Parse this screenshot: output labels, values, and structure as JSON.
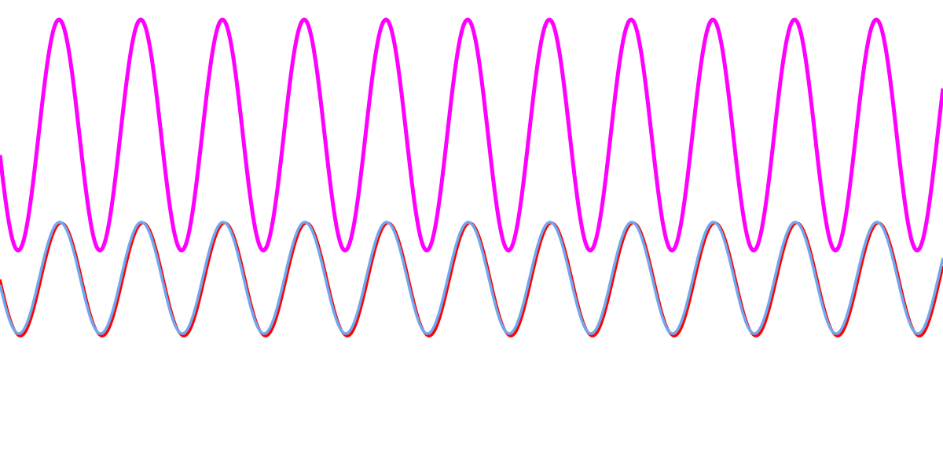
{
  "chart_data": {
    "type": "line",
    "title": "",
    "xlabel": "",
    "ylabel": "",
    "grid": false,
    "legend": "none",
    "axes_visible": false,
    "x_range": [
      0,
      1200
    ],
    "y_range": [
      -600,
      0
    ],
    "series": [
      {
        "color": "#ff00ff",
        "stroke": "thick",
        "x_start": 0,
        "x_end": 1200,
        "period": 104,
        "center": -172,
        "amplitude": 147,
        "phase_deg": 190,
        "peak_xs": [
          79,
          183,
          287,
          391,
          495,
          599,
          703,
          807,
          911,
          1015,
          1119
        ]
      },
      {
        "color": "#ff0000",
        "stroke": "medium",
        "x_start": 0,
        "x_end": 1200,
        "period": 104,
        "center": -356,
        "amplitude": 72,
        "phase_deg": 180,
        "peak_xs": [
          74,
          178,
          282,
          386,
          490,
          594,
          698,
          802,
          906,
          1010,
          1114
        ]
      },
      {
        "color": "#6fa8f0",
        "stroke": "medium",
        "x_start": 0,
        "x_end": 1200,
        "period": 104,
        "center": -354,
        "amplitude": 71,
        "phase_deg": 187,
        "peak_xs": [
          75,
          179,
          283,
          387,
          491,
          595,
          699,
          803,
          907,
          1011,
          1115
        ]
      }
    ]
  }
}
